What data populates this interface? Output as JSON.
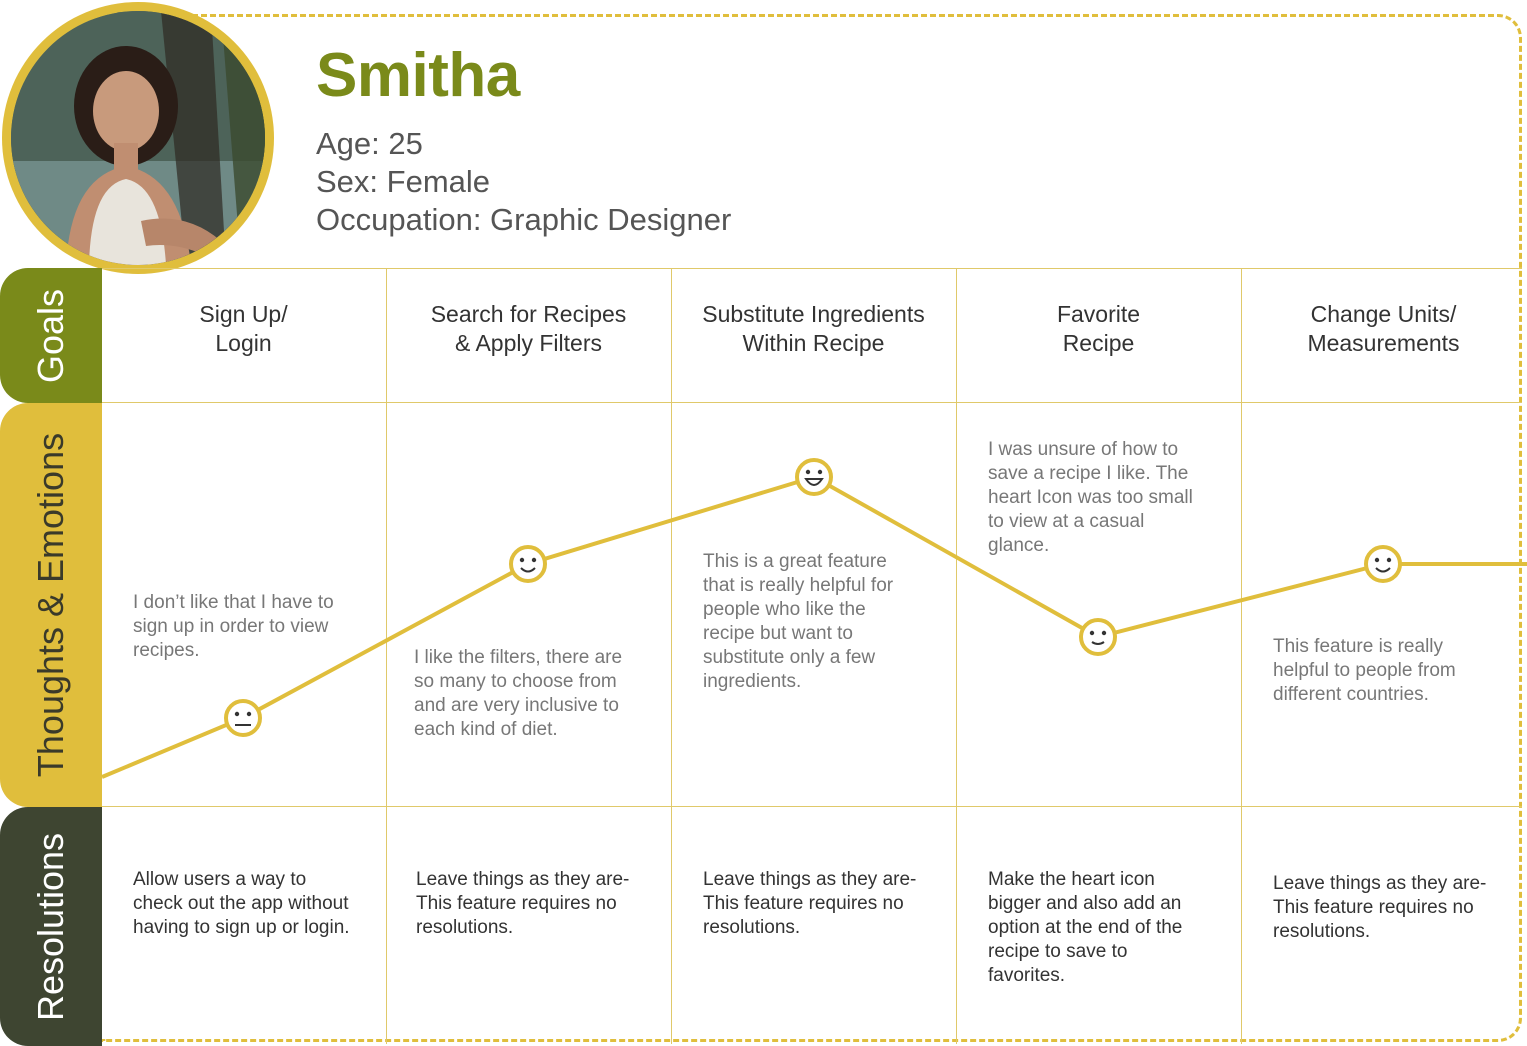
{
  "persona": {
    "name": "Smitha",
    "age": "Age: 25",
    "sex": "Sex: Female",
    "occupation": "Occupation: Graphic Designer"
  },
  "rows": {
    "goals": "Goals",
    "thoughts": "Thoughts & Emotions",
    "resolutions": "Resolutions"
  },
  "stages": [
    {
      "goal_line1": "Sign Up/",
      "goal_line2": "Login",
      "thought": "I don’t like that I have to sign up in order to view recipes.",
      "emotion": "neutral",
      "resolution": "Allow users a way to check out the app without having to sign up or login."
    },
    {
      "goal_line1": "Search for Recipes",
      "goal_line2": "& Apply Filters",
      "thought": "I like the filters, there are so many to choose from and are very inclusive to each kind of diet.",
      "emotion": "happy",
      "resolution": "Leave things as they are- This feature requires no resolutions."
    },
    {
      "goal_line1": "Substitute Ingredients",
      "goal_line2": "Within Recipe",
      "thought": "This is a great feature that is really helpful for people who like the recipe but want to substitute only a few ingredients.",
      "emotion": "very-happy",
      "resolution": "Leave things as they are- This feature requires no resolutions."
    },
    {
      "goal_line1": "Favorite",
      "goal_line2": "Recipe",
      "thought": "I was unsure of how to save a recipe I like. The heart Icon was too small to view at a casual glance.",
      "emotion": "slightly-happy",
      "resolution": "Make the heart icon bigger and also add an option at the end of the recipe to save to favorites."
    },
    {
      "goal_line1": "Change Units/",
      "goal_line2": "Measurements",
      "thought": "This feature is really helpful to people from different countries.",
      "emotion": "happy",
      "resolution": "Leave things as they are- This feature requires no resolutions."
    }
  ],
  "colors": {
    "accent_green": "#7a8a1a",
    "accent_yellow": "#e0be3c",
    "dark_olive": "#3e4531"
  }
}
